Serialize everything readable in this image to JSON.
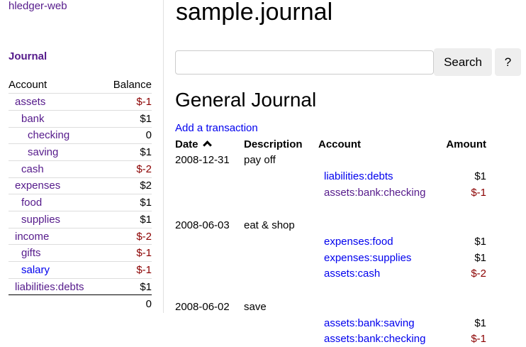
{
  "app_link": "hledger-web",
  "sidebar": {
    "journal_link": "Journal",
    "headers": {
      "account": "Account",
      "balance": "Balance"
    },
    "accounts": [
      {
        "name": "assets",
        "balance": "$-1",
        "level": 0,
        "visited": true,
        "negative": true
      },
      {
        "name": "bank",
        "balance": "$1",
        "level": 1,
        "visited": true,
        "negative": false
      },
      {
        "name": "checking",
        "balance": "0",
        "level": 2,
        "visited": true,
        "negative": false
      },
      {
        "name": "saving",
        "balance": "$1",
        "level": 2,
        "visited": true,
        "negative": false
      },
      {
        "name": "cash",
        "balance": "$-2",
        "level": 1,
        "visited": true,
        "negative": true
      },
      {
        "name": "expenses",
        "balance": "$2",
        "level": 0,
        "visited": true,
        "negative": false
      },
      {
        "name": "food",
        "balance": "$1",
        "level": 1,
        "visited": true,
        "negative": false
      },
      {
        "name": "supplies",
        "balance": "$1",
        "level": 1,
        "visited": true,
        "negative": false
      },
      {
        "name": "income",
        "balance": "$-2",
        "level": 0,
        "visited": true,
        "negative": true
      },
      {
        "name": "gifts",
        "balance": "$-1",
        "level": 1,
        "visited": true,
        "negative": true
      },
      {
        "name": "salary",
        "balance": "$-1",
        "level": 1,
        "visited": false,
        "negative": true
      },
      {
        "name": "liabilities:debts",
        "balance": "$1",
        "level": 0,
        "visited": true,
        "negative": false
      }
    ],
    "total": "0"
  },
  "main": {
    "title": "sample.journal",
    "search": {
      "value": "",
      "placeholder": "",
      "button": "Search",
      "help": "?"
    },
    "heading": "General Journal",
    "add_link": "Add a transaction",
    "columns": {
      "date": "Date",
      "sort_icon": "chevron-up-icon",
      "description": "Description",
      "account": "Account",
      "amount": "Amount"
    },
    "transactions": [
      {
        "date": "2008-12-31",
        "description": "pay off",
        "postings": [
          {
            "account": "liabilities:debts",
            "amount": "$1",
            "visited": false,
            "negative": false
          },
          {
            "account": "assets:bank:checking",
            "amount": "$-1",
            "visited": true,
            "negative": true
          }
        ]
      },
      {
        "date": "2008-06-03",
        "description": "eat & shop",
        "postings": [
          {
            "account": "expenses:food",
            "amount": "$1",
            "visited": false,
            "negative": false
          },
          {
            "account": "expenses:supplies",
            "amount": "$1",
            "visited": false,
            "negative": false
          },
          {
            "account": "assets:cash",
            "amount": "$-2",
            "visited": false,
            "negative": true
          }
        ]
      },
      {
        "date": "2008-06-02",
        "description": "save",
        "postings": [
          {
            "account": "assets:bank:saving",
            "amount": "$1",
            "visited": false,
            "negative": false
          },
          {
            "account": "assets:bank:checking",
            "amount": "$-1",
            "visited": false,
            "negative": true
          }
        ]
      }
    ]
  },
  "colors": {
    "visited_link": "#551a8b",
    "link": "#0000ee",
    "negative": "#8b0000"
  }
}
